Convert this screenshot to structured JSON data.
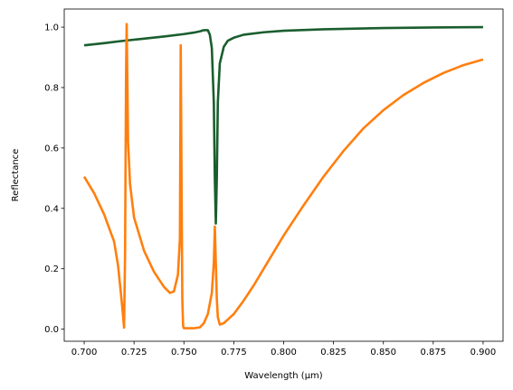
{
  "chart_data": {
    "type": "line",
    "title": "",
    "xlabel": "Wavelength (µm)",
    "ylabel": "Reflectance",
    "xlim": [
      0.69,
      0.91
    ],
    "ylim": [
      -0.04,
      1.06
    ],
    "grid": false,
    "xticks": [
      0.7,
      0.725,
      0.75,
      0.775,
      0.8,
      0.825,
      0.85,
      0.875,
      0.9
    ],
    "xtick_labels": [
      "0.700",
      "0.725",
      "0.750",
      "0.775",
      "0.800",
      "0.825",
      "0.850",
      "0.875",
      "0.900"
    ],
    "yticks": [
      0.0,
      0.2,
      0.4,
      0.6,
      0.8,
      1.0
    ],
    "ytick_labels": [
      "0.0",
      "0.2",
      "0.4",
      "0.6",
      "0.8",
      "1.0"
    ],
    "series": [
      {
        "color": "#1a5e2e",
        "x": [
          0.7,
          0.71,
          0.72,
          0.73,
          0.74,
          0.75,
          0.755,
          0.758,
          0.76,
          0.762,
          0.763,
          0.764,
          0.765,
          0.7655,
          0.766,
          0.7665,
          0.767,
          0.768,
          0.77,
          0.772,
          0.775,
          0.78,
          0.79,
          0.8,
          0.82,
          0.85,
          0.875,
          0.9
        ],
        "y": [
          0.94,
          0.947,
          0.955,
          0.962,
          0.969,
          0.977,
          0.982,
          0.986,
          0.99,
          0.99,
          0.975,
          0.93,
          0.75,
          0.5,
          0.35,
          0.5,
          0.75,
          0.88,
          0.935,
          0.955,
          0.965,
          0.975,
          0.983,
          0.988,
          0.993,
          0.997,
          0.999,
          1.0
        ]
      },
      {
        "color": "#ff7f0e",
        "x": [
          0.7,
          0.705,
          0.71,
          0.715,
          0.717,
          0.719,
          0.72,
          0.7205,
          0.721,
          0.7213,
          0.7217,
          0.722,
          0.723,
          0.725,
          0.73,
          0.735,
          0.74,
          0.743,
          0.745,
          0.747,
          0.748,
          0.7484,
          0.7488,
          0.7492,
          0.7496,
          0.75,
          0.752,
          0.755,
          0.758,
          0.76,
          0.762,
          0.764,
          0.765,
          0.7655,
          0.766,
          0.7665,
          0.767,
          0.768,
          0.77,
          0.775,
          0.78,
          0.785,
          0.79,
          0.8,
          0.81,
          0.82,
          0.83,
          0.84,
          0.85,
          0.86,
          0.87,
          0.88,
          0.89,
          0.9
        ],
        "y": [
          0.505,
          0.45,
          0.38,
          0.29,
          0.21,
          0.08,
          0.005,
          0.25,
          0.85,
          1.01,
          0.8,
          0.62,
          0.48,
          0.37,
          0.26,
          0.19,
          0.14,
          0.12,
          0.125,
          0.18,
          0.3,
          0.94,
          0.5,
          0.1,
          0.01,
          0.003,
          0.003,
          0.003,
          0.006,
          0.02,
          0.05,
          0.12,
          0.22,
          0.34,
          0.22,
          0.1,
          0.04,
          0.015,
          0.02,
          0.05,
          0.095,
          0.145,
          0.2,
          0.31,
          0.41,
          0.505,
          0.59,
          0.665,
          0.725,
          0.775,
          0.815,
          0.848,
          0.874,
          0.893
        ]
      }
    ]
  }
}
